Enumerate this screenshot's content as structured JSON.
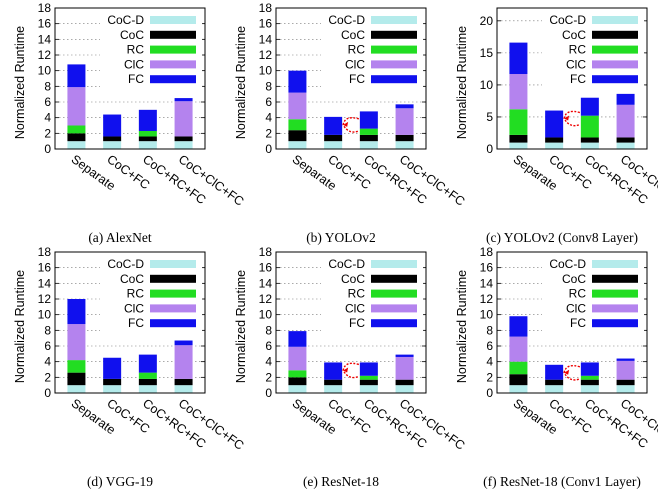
{
  "colors": {
    "CoC-D": "#b4ebeb",
    "CoC": "#000000",
    "RC": "#22dd22",
    "ClC": "#b483ee",
    "FC": "#1010ee",
    "annotation": "#ee0000"
  },
  "chart_data": [
    {
      "type": "bar",
      "stacked": true,
      "caption": "(a)  AlexNet",
      "ylabel": "Normalized Runtime",
      "ylim": [
        0,
        18
      ],
      "yticks": [
        0,
        2,
        4,
        6,
        8,
        10,
        12,
        14,
        16,
        18
      ],
      "grid": true,
      "legend_position": "top-right",
      "categories": [
        "Separate",
        "CoC+FC",
        "CoC+RC+FC",
        "CoC+ClC+FC"
      ],
      "series": [
        {
          "name": "CoC-D",
          "values": [
            1.0,
            1.0,
            1.0,
            1.0
          ]
        },
        {
          "name": "CoC",
          "values": [
            1.0,
            0.6,
            0.6,
            0.6
          ]
        },
        {
          "name": "RC",
          "values": [
            1.0,
            0,
            0.7,
            0
          ]
        },
        {
          "name": "ClC",
          "values": [
            4.9,
            0,
            0,
            4.5
          ]
        },
        {
          "name": "FC",
          "values": [
            2.9,
            2.8,
            2.7,
            0.4
          ]
        }
      ],
      "annotation": false
    },
    {
      "type": "bar",
      "stacked": true,
      "caption": "(b)  YOLOv2",
      "ylabel": "Normalized Runtime",
      "ylim": [
        0,
        18
      ],
      "yticks": [
        0,
        2,
        4,
        6,
        8,
        10,
        12,
        14,
        16,
        18
      ],
      "grid": true,
      "legend_position": "top-right",
      "categories": [
        "Separate",
        "CoC+FC",
        "CoC+RC+FC",
        "CoC+ClC+FC"
      ],
      "series": [
        {
          "name": "CoC-D",
          "values": [
            1.0,
            1.0,
            1.0,
            1.0
          ]
        },
        {
          "name": "CoC",
          "values": [
            1.4,
            0.8,
            0.8,
            0.8
          ]
        },
        {
          "name": "RC",
          "values": [
            1.4,
            0,
            0.8,
            0
          ]
        },
        {
          "name": "ClC",
          "values": [
            3.4,
            0,
            0,
            3.4
          ]
        },
        {
          "name": "FC",
          "values": [
            2.8,
            2.3,
            2.2,
            0.5
          ]
        }
      ],
      "annotation": true
    },
    {
      "type": "bar",
      "stacked": true,
      "caption": "(c)  YOLOv2 (Conv8 Layer)",
      "ylabel": "Normalized Runtime",
      "ylim": [
        0,
        22
      ],
      "yticks": [
        0,
        5,
        10,
        15,
        20
      ],
      "grid": true,
      "legend_position": "top-right",
      "categories": [
        "Separate",
        "CoC+FC",
        "CoC+RC+FC",
        "CoC+ClC+FC"
      ],
      "series": [
        {
          "name": "CoC-D",
          "values": [
            1.0,
            1.0,
            1.0,
            1.0
          ]
        },
        {
          "name": "CoC",
          "values": [
            1.2,
            0.8,
            0.8,
            0.8
          ]
        },
        {
          "name": "RC",
          "values": [
            4.0,
            0,
            3.4,
            0
          ]
        },
        {
          "name": "ClC",
          "values": [
            5.5,
            0,
            0,
            5.1
          ]
        },
        {
          "name": "FC",
          "values": [
            4.9,
            4.2,
            2.8,
            1.7
          ]
        }
      ],
      "annotation": true
    },
    {
      "type": "bar",
      "stacked": true,
      "caption": "(d)  VGG-19",
      "ylabel": "Normalized Runtime",
      "ylim": [
        0,
        18
      ],
      "yticks": [
        0,
        2,
        4,
        6,
        8,
        10,
        12,
        14,
        16,
        18
      ],
      "grid": true,
      "legend_position": "top-right",
      "categories": [
        "Separate",
        "CoC+FC",
        "CoC+RC+FC",
        "CoC+ClC+FC"
      ],
      "series": [
        {
          "name": "CoC-D",
          "values": [
            1.0,
            1.0,
            1.0,
            1.0
          ]
        },
        {
          "name": "CoC",
          "values": [
            1.6,
            0.8,
            0.8,
            0.8
          ]
        },
        {
          "name": "RC",
          "values": [
            1.6,
            0,
            0.8,
            0
          ]
        },
        {
          "name": "ClC",
          "values": [
            4.6,
            0,
            0,
            4.3
          ]
        },
        {
          "name": "FC",
          "values": [
            3.2,
            2.7,
            2.3,
            0.6
          ]
        }
      ],
      "annotation": false
    },
    {
      "type": "bar",
      "stacked": true,
      "caption": "(e)  ResNet-18",
      "ylabel": "Normalized Runtime",
      "ylim": [
        0,
        18
      ],
      "yticks": [
        0,
        2,
        4,
        6,
        8,
        10,
        12,
        14,
        16,
        18
      ],
      "grid": true,
      "legend_position": "top-right",
      "categories": [
        "Separate",
        "CoC+FC",
        "CoC+RC+FC",
        "CoC+ClC+FC"
      ],
      "series": [
        {
          "name": "CoC-D",
          "values": [
            1.0,
            1.0,
            1.0,
            1.0
          ]
        },
        {
          "name": "CoC",
          "values": [
            1.0,
            0.7,
            0.7,
            0.7
          ]
        },
        {
          "name": "RC",
          "values": [
            0.9,
            0,
            0.5,
            0
          ]
        },
        {
          "name": "ClC",
          "values": [
            3.0,
            0,
            0,
            2.9
          ]
        },
        {
          "name": "FC",
          "values": [
            2.0,
            2.2,
            1.7,
            0.3
          ]
        }
      ],
      "annotation": true
    },
    {
      "type": "bar",
      "stacked": true,
      "caption": "(f)  ResNet-18 (Conv1 Layer)",
      "ylabel": "Normalized Runtime",
      "ylim": [
        0,
        18
      ],
      "yticks": [
        0,
        2,
        4,
        6,
        8,
        10,
        12,
        14,
        16,
        18
      ],
      "grid": true,
      "legend_position": "top-right",
      "categories": [
        "Separate",
        "CoC+FC",
        "CoC+RC+FC",
        "CoC+ClC+FC"
      ],
      "series": [
        {
          "name": "CoC-D",
          "values": [
            1.0,
            1.0,
            1.0,
            1.0
          ]
        },
        {
          "name": "CoC",
          "values": [
            1.4,
            0.7,
            0.7,
            0.7
          ]
        },
        {
          "name": "RC",
          "values": [
            1.6,
            0,
            0.5,
            0
          ]
        },
        {
          "name": "ClC",
          "values": [
            3.2,
            0,
            0,
            2.4
          ]
        },
        {
          "name": "FC",
          "values": [
            2.6,
            1.9,
            1.7,
            0.3
          ]
        }
      ],
      "annotation": true
    }
  ]
}
